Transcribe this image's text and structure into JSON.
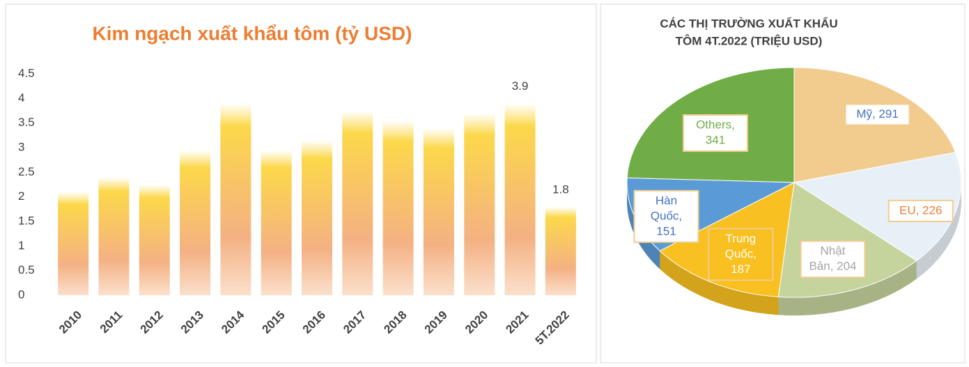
{
  "chart_data": [
    {
      "type": "bar",
      "title": "Kim ngạch xuất khẩu tôm (tỷ USD)",
      "categories": [
        "2010",
        "2011",
        "2012",
        "2013",
        "2014",
        "2015",
        "2016",
        "2017",
        "2018",
        "2019",
        "2020",
        "2021",
        "5T.2022"
      ],
      "values": [
        2.1,
        2.4,
        2.25,
        2.95,
        3.9,
        2.95,
        3.15,
        3.75,
        3.55,
        3.4,
        3.7,
        3.9,
        1.8
      ],
      "value_labels": [
        null,
        null,
        null,
        null,
        null,
        null,
        null,
        null,
        null,
        null,
        null,
        "3.9",
        "1.8"
      ],
      "ylim": [
        0,
        4.5
      ],
      "yticks": [
        0,
        0.5,
        1,
        1.5,
        2,
        2.5,
        3,
        3.5,
        4,
        4.5
      ],
      "grid": false,
      "colors": [
        "#fcd84a",
        "#f4b183"
      ]
    },
    {
      "type": "pie",
      "title": [
        "CÁC THỊ TRƯỜNG XUẤT KHẨU",
        "TÔM 4T.2022 (TRIỆU USD)"
      ],
      "values": [
        291,
        226,
        204,
        187,
        151,
        341
      ],
      "value_labels": [
        [
          "Mỹ, 291"
        ],
        [
          "EU, 226"
        ],
        [
          "Nhật",
          "Bản, 204"
        ],
        [
          "Trung",
          "Quốc,",
          "187"
        ],
        [
          "Hàn",
          "Quốc,",
          "151"
        ],
        [
          "Others,",
          "341"
        ]
      ],
      "colors": [
        "#f2cc8f",
        "#e8f0f7",
        "#c5d39c",
        "#f8c020",
        "#5b9bd5",
        "#70ad47"
      ],
      "label_colors": [
        "#4472c4",
        "#ed7d31",
        "#a5a5a5",
        "#ffffff",
        "#4472c4",
        "#70ad47"
      ]
    }
  ]
}
